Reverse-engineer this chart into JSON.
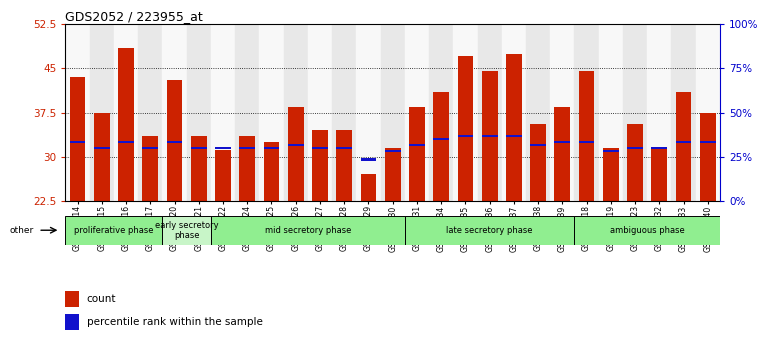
{
  "title": "GDS2052 / 223955_at",
  "samples": [
    "GSM109814",
    "GSM109815",
    "GSM109816",
    "GSM109817",
    "GSM109820",
    "GSM109821",
    "GSM109822",
    "GSM109824",
    "GSM109825",
    "GSM109826",
    "GSM109827",
    "GSM109828",
    "GSM109829",
    "GSM109830",
    "GSM109831",
    "GSM109834",
    "GSM109835",
    "GSM109836",
    "GSM109837",
    "GSM109838",
    "GSM109839",
    "GSM109818",
    "GSM109819",
    "GSM109823",
    "GSM109832",
    "GSM109833",
    "GSM109840"
  ],
  "count_values": [
    43.5,
    37.5,
    48.5,
    33.5,
    43.0,
    33.5,
    31.2,
    33.5,
    32.5,
    38.5,
    34.5,
    34.5,
    27.0,
    31.5,
    38.5,
    41.0,
    47.0,
    44.5,
    47.5,
    35.5,
    38.5,
    44.5,
    31.5,
    35.5,
    31.5,
    41.0,
    37.5
  ],
  "percentile_values": [
    32.5,
    31.5,
    32.5,
    31.5,
    32.5,
    31.5,
    31.5,
    31.5,
    31.5,
    32.0,
    31.5,
    31.5,
    29.5,
    31.0,
    32.0,
    33.0,
    33.5,
    33.5,
    33.5,
    32.0,
    32.5,
    32.5,
    31.0,
    31.5,
    31.5,
    32.5,
    32.5
  ],
  "y_min": 22.5,
  "y_max": 52.5,
  "y_ticks": [
    22.5,
    30,
    37.5,
    45,
    52.5
  ],
  "y2_ticks": [
    0,
    25,
    50,
    75,
    100
  ],
  "y2_tick_positions": [
    22.5,
    30,
    37.5,
    45,
    52.5
  ],
  "bar_color": "#CC2200",
  "blue_color": "#1111CC",
  "grid_color": "black",
  "phases": [
    {
      "label": "proliferative phase",
      "start": 0,
      "end": 4,
      "color": "#90EE90"
    },
    {
      "label": "early secretory\nphase",
      "start": 4,
      "end": 6,
      "color": "#C8F5C8"
    },
    {
      "label": "mid secretory phase",
      "start": 6,
      "end": 14,
      "color": "#90EE90"
    },
    {
      "label": "late secretory phase",
      "start": 14,
      "end": 21,
      "color": "#90EE90"
    },
    {
      "label": "ambiguous phase",
      "start": 21,
      "end": 27,
      "color": "#90EE90"
    }
  ],
  "legend_count_label": "count",
  "legend_pct_label": "percentile rank within the sample",
  "other_label": "other"
}
